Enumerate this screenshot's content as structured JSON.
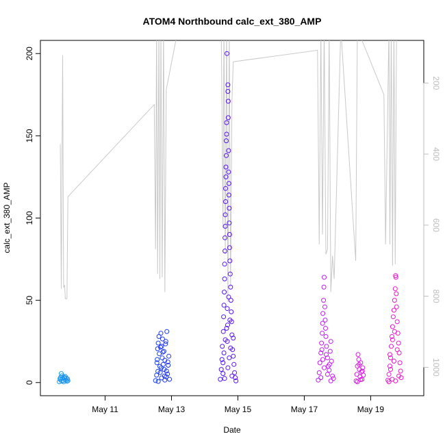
{
  "colors": {
    "background": "#ffffff",
    "axis": "#000000",
    "right_axis": "#bdbdbd",
    "line_series": "#c8c8c8",
    "point_gradient": [
      "#1e9bf0",
      "#0a5cff",
      "#2a16f0",
      "#8a0aff",
      "#c81ef0",
      "#f014c8"
    ]
  },
  "chart_data": {
    "type": "scatter",
    "title": "ATOM4 Northbound calc_ext_380_AMP",
    "xlabel": "Date",
    "ylabel": "calc_ext_380_AMP",
    "xlim": [
      9.05,
      20.6
    ],
    "ylim": [
      -8,
      208
    ],
    "x_unit": "day of May (fractional)",
    "x_ticks": [
      {
        "value": 11,
        "label": "May 11"
      },
      {
        "value": 13,
        "label": "May 13"
      },
      {
        "value": 15,
        "label": "May 15"
      },
      {
        "value": 17,
        "label": "May 17"
      },
      {
        "value": 19,
        "label": "May 19"
      }
    ],
    "y_ticks": [
      0,
      50,
      100,
      150,
      200
    ],
    "y2_ticks": [
      200,
      400,
      600,
      800,
      1000
    ],
    "y2lim": [
      80,
      1080
    ],
    "y2_reversed": true,
    "clusters": [
      {
        "x_range": [
          9.6,
          9.9
        ],
        "points": [
          [
            9.62,
            0.5
          ],
          [
            9.65,
            1.8
          ],
          [
            9.66,
            3.2
          ],
          [
            9.68,
            5.5
          ],
          [
            9.7,
            4.1
          ],
          [
            9.72,
            2.6
          ],
          [
            9.74,
            1.2
          ],
          [
            9.75,
            0.4
          ],
          [
            9.78,
            2.9
          ],
          [
            9.8,
            3.7
          ],
          [
            9.82,
            1.5
          ],
          [
            9.85,
            0.8
          ],
          [
            9.87,
            2.2
          ],
          [
            9.88,
            1.1
          ],
          [
            9.64,
            2.4
          ],
          [
            9.69,
            0.9
          ],
          [
            9.76,
            3.3
          ],
          [
            9.83,
            2.7
          ]
        ]
      },
      {
        "x_range": [
          12.5,
          12.95
        ],
        "points": [
          [
            12.52,
            1.2
          ],
          [
            12.55,
            4.5
          ],
          [
            12.56,
            12.0
          ],
          [
            12.58,
            20.5
          ],
          [
            12.6,
            24.0
          ],
          [
            12.62,
            28.0
          ],
          [
            12.63,
            17.5
          ],
          [
            12.65,
            9.8
          ],
          [
            12.66,
            6.1
          ],
          [
            12.68,
            30.0
          ],
          [
            12.7,
            22.0
          ],
          [
            12.72,
            15.0
          ],
          [
            12.73,
            26.5
          ],
          [
            12.75,
            11.0
          ],
          [
            12.77,
            19.0
          ],
          [
            12.78,
            8.0
          ],
          [
            12.8,
            13.5
          ],
          [
            12.82,
            23.5
          ],
          [
            12.84,
            3.5
          ],
          [
            12.85,
            7.0
          ],
          [
            12.86,
            31.0
          ],
          [
            12.88,
            5.2
          ],
          [
            12.9,
            10.5
          ],
          [
            12.92,
            16.0
          ],
          [
            12.94,
            2.0
          ],
          [
            12.6,
            0.7
          ],
          [
            12.7,
            2.8
          ],
          [
            12.8,
            1.5
          ],
          [
            12.57,
            14.0
          ],
          [
            12.67,
            21.5
          ],
          [
            12.74,
            18.5
          ],
          [
            12.83,
            25.0
          ],
          [
            12.59,
            6.8
          ],
          [
            12.69,
            9.0
          ],
          [
            12.79,
            4.0
          ],
          [
            12.89,
            12.5
          ]
        ]
      },
      {
        "x_range": [
          14.45,
          14.95
        ],
        "points": [
          [
            14.47,
            2.0
          ],
          [
            14.5,
            8.0
          ],
          [
            14.52,
            14.0
          ],
          [
            14.53,
            22.0
          ],
          [
            14.55,
            5.5
          ],
          [
            14.56,
            31.0
          ],
          [
            14.57,
            40.0
          ],
          [
            14.58,
            47.0
          ],
          [
            14.59,
            55.0
          ],
          [
            14.6,
            63.0
          ],
          [
            14.6,
            72.0
          ],
          [
            14.61,
            80.0
          ],
          [
            14.61,
            88.0
          ],
          [
            14.62,
            95.0
          ],
          [
            14.62,
            102.0
          ],
          [
            14.63,
            110.0
          ],
          [
            14.63,
            118.0
          ],
          [
            14.64,
            125.0
          ],
          [
            14.64,
            131.0
          ],
          [
            14.65,
            138.0
          ],
          [
            14.65,
            147.0
          ],
          [
            14.66,
            151.0
          ],
          [
            14.66,
            158.0
          ],
          [
            14.67,
            200.0
          ],
          [
            14.68,
            25.0
          ],
          [
            14.69,
            35.0
          ],
          [
            14.7,
            181.0
          ],
          [
            14.7,
            177.0
          ],
          [
            14.71,
            171.0
          ],
          [
            14.71,
            161.0
          ],
          [
            14.72,
            141.0
          ],
          [
            14.72,
            128.0
          ],
          [
            14.73,
            121.0
          ],
          [
            14.73,
            114.0
          ],
          [
            14.74,
            106.0
          ],
          [
            14.74,
            97.0
          ],
          [
            14.75,
            90.0
          ],
          [
            14.75,
            82.0
          ],
          [
            14.76,
            74.0
          ],
          [
            14.77,
            66.0
          ],
          [
            14.78,
            58.0
          ],
          [
            14.79,
            50.0
          ],
          [
            14.8,
            43.0
          ],
          [
            14.81,
            37.0
          ],
          [
            14.82,
            29.0
          ],
          [
            14.84,
            20.0
          ],
          [
            14.86,
            16.0
          ],
          [
            14.88,
            11.0
          ],
          [
            14.9,
            6.0
          ],
          [
            14.92,
            3.0
          ],
          [
            14.94,
            1.0
          ],
          [
            14.55,
            12.0
          ],
          [
            14.58,
            18.0
          ],
          [
            14.62,
            26.0
          ],
          [
            14.66,
            33.0
          ],
          [
            14.7,
            9.0
          ],
          [
            14.74,
            15.0
          ],
          [
            14.78,
            21.0
          ],
          [
            14.82,
            4.0
          ],
          [
            14.86,
            27.0
          ],
          [
            14.6,
            2.5
          ],
          [
            14.68,
            45.0
          ],
          [
            14.72,
            52.0
          ],
          [
            14.76,
            38.0
          ]
        ]
      },
      {
        "x_range": [
          17.4,
          17.9
        ],
        "points": [
          [
            17.42,
            1.5
          ],
          [
            17.45,
            6.0
          ],
          [
            17.47,
            12.0
          ],
          [
            17.5,
            18.0
          ],
          [
            17.52,
            24.0
          ],
          [
            17.54,
            30.0
          ],
          [
            17.55,
            36.0
          ],
          [
            17.56,
            42.0
          ],
          [
            17.58,
            50.0
          ],
          [
            17.59,
            58.0
          ],
          [
            17.6,
            64.0
          ],
          [
            17.62,
            46.0
          ],
          [
            17.63,
            38.0
          ],
          [
            17.65,
            28.0
          ],
          [
            17.67,
            22.0
          ],
          [
            17.7,
            15.0
          ],
          [
            17.72,
            10.0
          ],
          [
            17.75,
            7.5
          ],
          [
            17.78,
            19.0
          ],
          [
            17.8,
            25.0
          ],
          [
            17.82,
            13.0
          ],
          [
            17.85,
            4.0
          ],
          [
            17.88,
            2.5
          ],
          [
            17.5,
            3.0
          ],
          [
            17.6,
            9.0
          ],
          [
            17.7,
            5.0
          ],
          [
            17.8,
            1.0
          ],
          [
            17.56,
            14.0
          ],
          [
            17.66,
            17.0
          ],
          [
            17.76,
            11.0
          ],
          [
            17.64,
            33.0
          ],
          [
            17.53,
            20.0
          ]
        ]
      },
      {
        "x_range": [
          18.55,
          18.8
        ],
        "points": [
          [
            18.56,
            1.0
          ],
          [
            18.58,
            5.0
          ],
          [
            18.6,
            10.0
          ],
          [
            18.62,
            17.0
          ],
          [
            18.64,
            14.0
          ],
          [
            18.66,
            8.0
          ],
          [
            18.68,
            3.5
          ],
          [
            18.7,
            12.0
          ],
          [
            18.72,
            6.5
          ],
          [
            18.74,
            2.0
          ],
          [
            18.76,
            9.0
          ],
          [
            18.78,
            4.5
          ],
          [
            18.6,
            0.5
          ],
          [
            18.7,
            1.8
          ],
          [
            18.65,
            11.0
          ],
          [
            18.75,
            7.0
          ]
        ]
      },
      {
        "x_range": [
          19.5,
          19.95
        ],
        "points": [
          [
            19.52,
            1.5
          ],
          [
            19.55,
            5.0
          ],
          [
            19.58,
            10.0
          ],
          [
            19.6,
            15.0
          ],
          [
            19.62,
            22.0
          ],
          [
            19.64,
            28.0
          ],
          [
            19.66,
            34.0
          ],
          [
            19.68,
            40.0
          ],
          [
            19.7,
            44.0
          ],
          [
            19.72,
            50.0
          ],
          [
            19.74,
            57.0
          ],
          [
            19.75,
            65.0
          ],
          [
            19.76,
            64.0
          ],
          [
            19.77,
            54.0
          ],
          [
            19.78,
            46.0
          ],
          [
            19.8,
            37.0
          ],
          [
            19.82,
            30.0
          ],
          [
            19.84,
            24.0
          ],
          [
            19.86,
            18.0
          ],
          [
            19.88,
            12.0
          ],
          [
            19.9,
            7.0
          ],
          [
            19.92,
            3.0
          ],
          [
            19.55,
            0.5
          ],
          [
            19.65,
            2.0
          ],
          [
            19.75,
            1.0
          ],
          [
            19.85,
            4.0
          ],
          [
            19.6,
            8.0
          ],
          [
            19.7,
            13.0
          ],
          [
            19.8,
            20.0
          ],
          [
            19.66,
            26.0
          ],
          [
            19.72,
            31.0
          ],
          [
            19.58,
            17.0
          ]
        ]
      }
    ],
    "line_series": [
      [
        9.65,
        145
      ],
      [
        9.68,
        57
      ],
      [
        9.72,
        199
      ],
      [
        9.75,
        58
      ],
      [
        9.78,
        59
      ],
      [
        9.8,
        51
      ],
      [
        9.85,
        51
      ],
      [
        9.88,
        113
      ],
      [
        12.48,
        169
      ],
      [
        12.52,
        81
      ],
      [
        12.55,
        215
      ],
      [
        12.58,
        66
      ],
      [
        12.62,
        215
      ],
      [
        12.65,
        63
      ],
      [
        12.68,
        215
      ],
      [
        12.72,
        64
      ],
      [
        12.76,
        215
      ],
      [
        12.8,
        55
      ],
      [
        12.84,
        178
      ],
      [
        13.2,
        215
      ],
      [
        14.5,
        215
      ],
      [
        14.55,
        94
      ],
      [
        14.58,
        215
      ],
      [
        14.62,
        78
      ],
      [
        14.66,
        215
      ],
      [
        14.7,
        49
      ],
      [
        14.74,
        215
      ],
      [
        14.78,
        58
      ],
      [
        14.82,
        171
      ],
      [
        14.86,
        195
      ],
      [
        17.4,
        202
      ],
      [
        17.45,
        84
      ],
      [
        17.5,
        215
      ],
      [
        17.55,
        90
      ],
      [
        17.6,
        215
      ],
      [
        17.65,
        78
      ],
      [
        17.7,
        81
      ],
      [
        17.75,
        215
      ],
      [
        17.8,
        55
      ],
      [
        17.85,
        77
      ],
      [
        17.9,
        63
      ],
      [
        18.1,
        215
      ],
      [
        18.55,
        74
      ],
      [
        18.6,
        215
      ],
      [
        19.4,
        175
      ],
      [
        19.45,
        84
      ],
      [
        19.55,
        215
      ],
      [
        19.58,
        84
      ],
      [
        19.62,
        215
      ],
      [
        19.66,
        71
      ],
      [
        19.7,
        215
      ],
      [
        19.74,
        72
      ],
      [
        19.78,
        215
      ]
    ]
  }
}
